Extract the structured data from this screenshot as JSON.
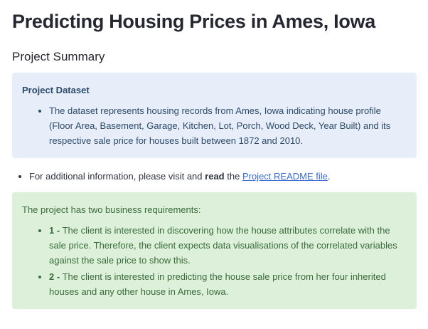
{
  "header": {
    "title": "Predicting Housing Prices in Ames, Iowa",
    "subtitle": "Project Summary"
  },
  "info_box": {
    "heading": "Project Dataset",
    "items": [
      "The dataset represents housing records from Ames, Iowa indicating house profile (Floor Area, Basement, Garage, Kitchen, Lot, Porch, Wood Deck, Year Built) and its respective sale price for houses built between 1872 and 2010."
    ]
  },
  "note": {
    "before": "For additional information, please visit and",
    "bold": "read",
    "middle": "the",
    "link": "Project README file",
    "after": "."
  },
  "success_box": {
    "intro": "The project has two business requirements:",
    "items": [
      {
        "label": "1 -",
        "text": "The client is interested in discovering how the house attributes correlate with the sale price. Therefore, the client expects data visualisations of the correlated variables against the sale price to show this."
      },
      {
        "label": "2 -",
        "text": "The client is interested in predicting the house sale price from her four inherited houses and any other house in Ames, Iowa."
      }
    ]
  }
}
